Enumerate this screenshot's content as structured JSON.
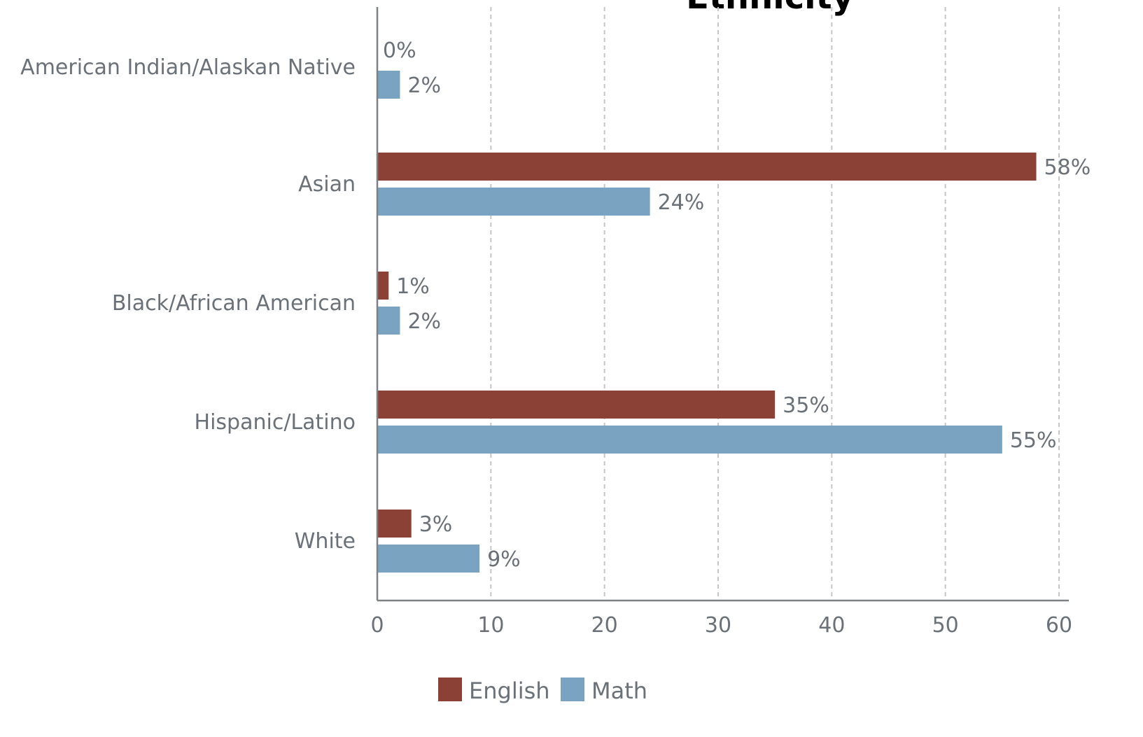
{
  "chart_data": {
    "type": "bar",
    "orientation": "horizontal",
    "title": "Ethnicity",
    "categories": [
      "American Indian/Alaskan Native",
      "Asian",
      "Black/African American",
      "Hispanic/Latino",
      "White"
    ],
    "series": [
      {
        "name": "English",
        "color": "#8c4136",
        "values": [
          0,
          58,
          1,
          35,
          3
        ],
        "labels": [
          "0%",
          "58%",
          "1%",
          "35%",
          "3%"
        ]
      },
      {
        "name": "Math",
        "color": "#7aa3c2",
        "values": [
          2,
          24,
          2,
          55,
          9
        ],
        "labels": [
          "2%",
          "24%",
          "2%",
          "55%",
          "9%"
        ]
      }
    ],
    "xlim": [
      0,
      60
    ],
    "xticks": [
      "0",
      "10",
      "20",
      "30",
      "40",
      "50",
      "60"
    ],
    "grid": "vertical dashed",
    "legend_position": "bottom"
  }
}
